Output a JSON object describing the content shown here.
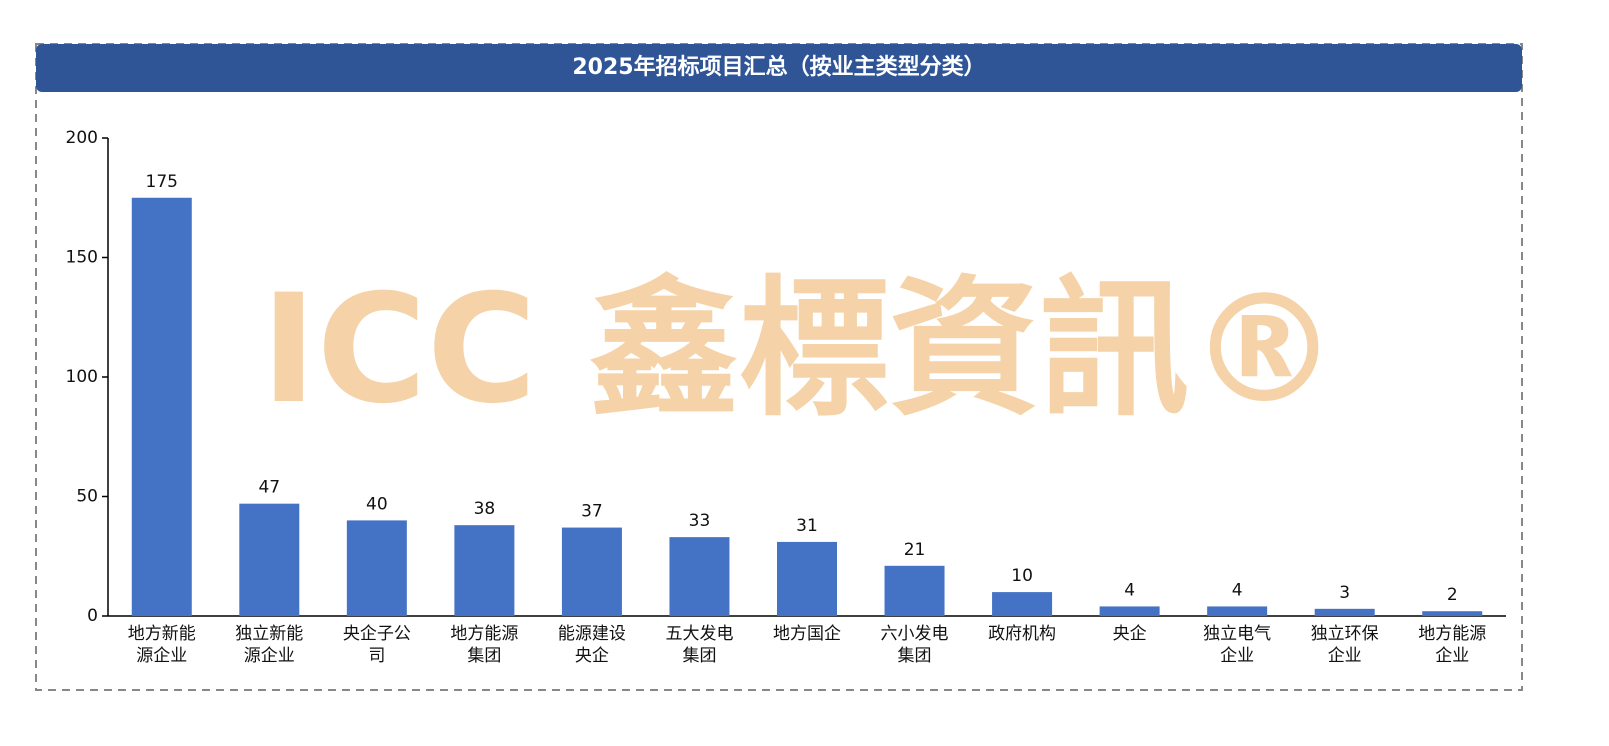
{
  "chart_data": {
    "type": "bar",
    "title": "2025年招标项目汇总（按业主类型分类）",
    "watermark": "ICC 鑫標資訊®",
    "categories": [
      "地方新能源企业",
      "独立新能源企业",
      "央企子公司",
      "地方能源集团",
      "能源建设央企",
      "五大发电集团",
      "地方国企",
      "六小发电集团",
      "政府机构",
      "央企",
      "独立电气企业",
      "独立环保企业",
      "地方能源企业"
    ],
    "values": [
      175,
      47,
      40,
      38,
      37,
      33,
      31,
      21,
      10,
      4,
      4,
      3,
      2
    ],
    "color": "#4472c4",
    "ylim": [
      0,
      200
    ],
    "yticks": [
      0,
      50,
      100,
      150,
      200
    ],
    "grid": false
  }
}
